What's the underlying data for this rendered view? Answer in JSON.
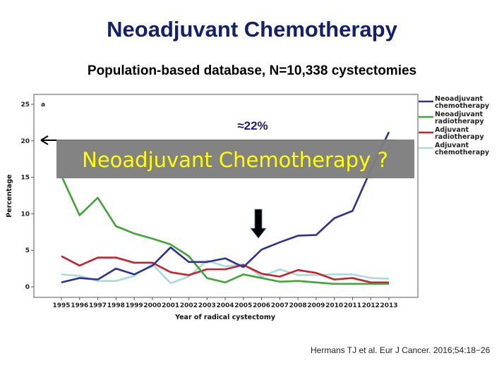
{
  "slide": {
    "title": "Neoadjuvant Chemotherapy",
    "subtitle": "Population-based database, N=10,338 cystectomies",
    "citation": "Hermans TJ et al. Eur J Cancer. 2016;54:18−26",
    "overlay_box_text": "Neoadjuvant Chemotherapy ?",
    "annotation": "≈22%",
    "panel_label": "a",
    "colors": {
      "title": "#14206a",
      "overlay_box": "#7f7f7f",
      "overlay_text": "#ffff00",
      "annotation": "#1a1a8c"
    }
  },
  "chart_data": {
    "type": "line",
    "xlabel": "Year of radical cystectomy",
    "ylabel": "Percentage",
    "x": [
      1995,
      1996,
      1997,
      1998,
      1999,
      2000,
      2001,
      2002,
      2003,
      2004,
      2005,
      2006,
      2007,
      2008,
      2009,
      2010,
      2011,
      2012,
      2013
    ],
    "ylim": [
      0,
      25
    ],
    "yticks": [
      0,
      5,
      10,
      15,
      20,
      25
    ],
    "grid": false,
    "legend": "right",
    "series": [
      {
        "name": "Neoadjuvant chemotherapy",
        "color": "#2e3192",
        "values": [
          0.6,
          1.2,
          1.0,
          2.5,
          1.7,
          2.9,
          5.4,
          3.4,
          3.4,
          3.9,
          2.7,
          5.1,
          6.1,
          7.0,
          7.1,
          9.4,
          10.4,
          16.0,
          21.2
        ]
      },
      {
        "name": "Neoadjuvant radiotherapy",
        "color": "#3fa535",
        "values": [
          15.2,
          9.8,
          12.2,
          8.3,
          7.3,
          6.6,
          5.8,
          4.2,
          1.2,
          0.6,
          1.7,
          1.2,
          0.7,
          0.8,
          0.6,
          0.4,
          0.4,
          0.4,
          0.4
        ]
      },
      {
        "name": "Adjuvant radiotherapy",
        "color": "#c8202a",
        "values": [
          4.2,
          2.9,
          4.0,
          4.0,
          3.3,
          3.3,
          2.0,
          1.6,
          2.4,
          2.4,
          3.0,
          1.8,
          1.4,
          2.3,
          1.9,
          1.0,
          1.2,
          0.6,
          0.6
        ]
      },
      {
        "name": "Adjuvant chemotherapy",
        "color": "#a8dcdc",
        "values": [
          1.7,
          1.5,
          0.8,
          0.8,
          1.5,
          3.1,
          0.5,
          1.4,
          3.6,
          2.8,
          3.1,
          1.4,
          2.4,
          1.6,
          1.6,
          1.7,
          1.7,
          1.2,
          1.1
        ]
      }
    ]
  }
}
